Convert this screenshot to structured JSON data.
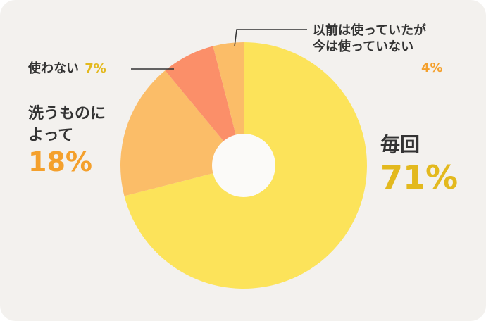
{
  "chart_data": {
    "type": "pie",
    "series": [
      {
        "label": "毎回",
        "value": 71,
        "value_text": "71%",
        "color": "#fce35a",
        "label_color": "#e3b91e"
      },
      {
        "label": "洗うものに\nよって",
        "value": 18,
        "value_text": "18%",
        "color": "#fbbd68",
        "label_color": "#f4a02c"
      },
      {
        "label": "使わない",
        "value": 7,
        "value_text": "7%",
        "color": "#fb8f69",
        "label_color": "#e3b91e"
      },
      {
        "label": "以前は使っていたが\n今は使っていない",
        "value": 4,
        "value_text": "4%",
        "color": "#fbbd68",
        "label_color": "#f4a02c"
      }
    ],
    "style": "donut",
    "start": "top, clockwise",
    "colors": {
      "background": "#f3f1ee",
      "center": "#fbfaf8",
      "leader_line": "#333333"
    }
  }
}
